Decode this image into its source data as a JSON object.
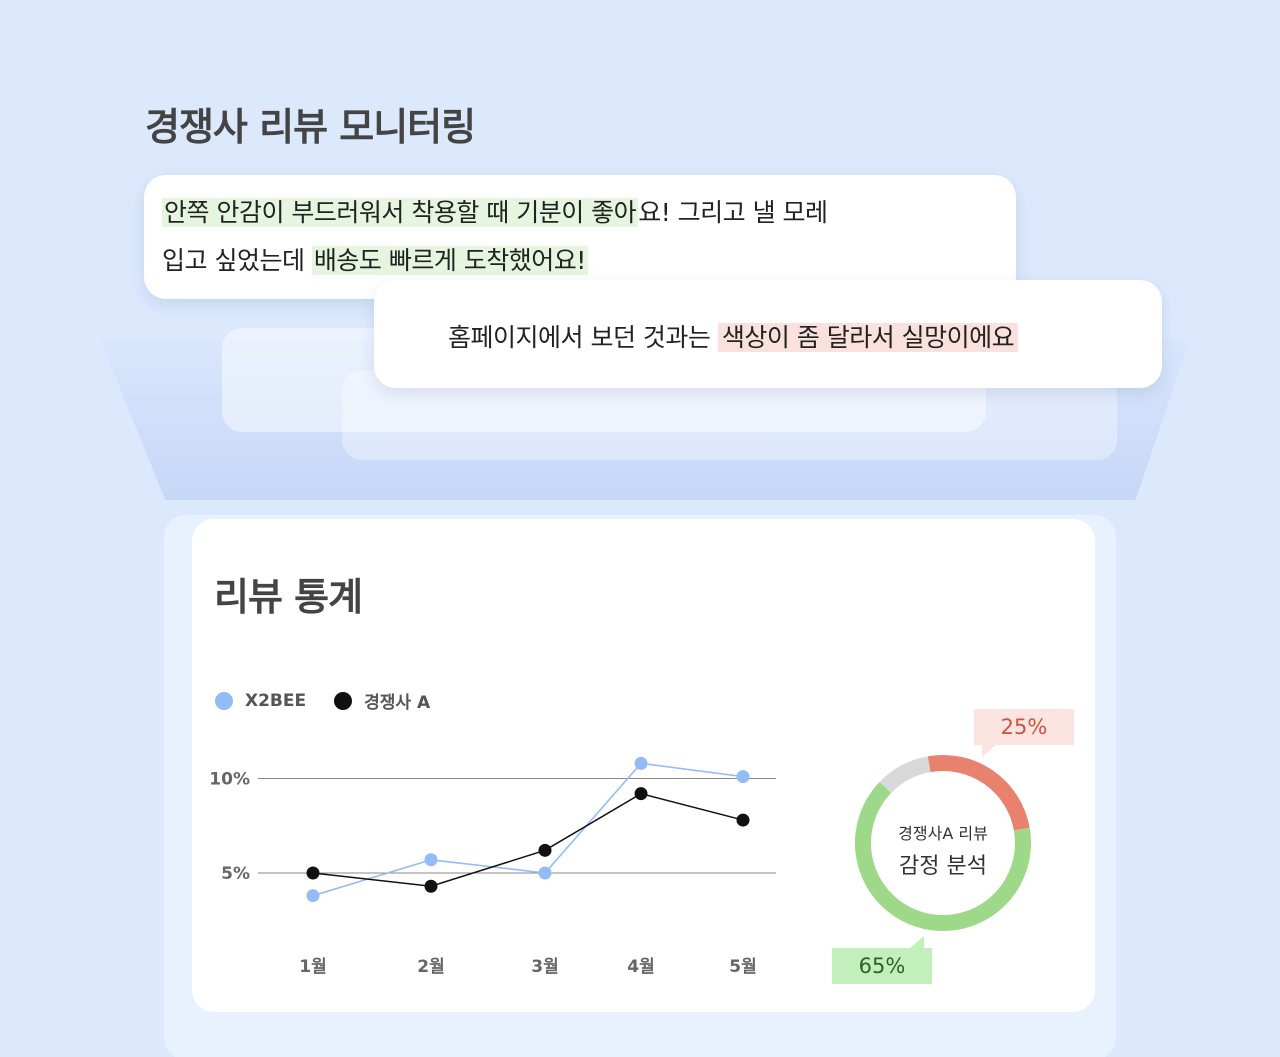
{
  "page": {
    "title": "경쟁사 리뷰 모니터링"
  },
  "reviews": [
    {
      "line1_highlight": "안쪽 안감이 부드러워서 착용할 때 기분이 좋아",
      "line1_rest": "요! 그리고 낼 모레",
      "line2_plain": "입고 싶었는데 ",
      "line2_highlight": "배송도 빠르게 도착했어요!",
      "sentiment": "positive"
    },
    {
      "plain": "홈페이지에서 보던 것과는 ",
      "highlight": "색상이 좀 달라서 실망이에요",
      "sentiment": "negative"
    }
  ],
  "stats": {
    "title": "리뷰 통계",
    "legend": [
      "X2BEE",
      "경쟁사 A"
    ]
  },
  "donut": {
    "label_small": "경쟁사A 리뷰",
    "label_large": "감정 분석",
    "negative_label": "25%",
    "positive_label": "65%"
  },
  "colors": {
    "x2bee": "#93bbf5",
    "competitor": "#111111",
    "positive": "#9ed98a",
    "negative": "#e8826f",
    "neutral": "#d9d9d9"
  },
  "chart_data": [
    {
      "type": "line",
      "categories": [
        "1월",
        "2월",
        "3월",
        "4월",
        "5월"
      ],
      "ytick_labels": [
        "5%",
        "10%"
      ],
      "ylim": [
        0,
        14
      ],
      "series": [
        {
          "name": "X2BEE",
          "values": [
            3.8,
            5.7,
            5.0,
            10.8,
            10.1
          ]
        },
        {
          "name": "경쟁사 A",
          "values": [
            5.0,
            4.3,
            6.2,
            9.2,
            7.8
          ]
        }
      ],
      "legend": "top-left",
      "grid": true
    },
    {
      "type": "pie",
      "categories": [
        "negative",
        "positive",
        "neutral"
      ],
      "values": [
        25,
        65,
        10
      ],
      "labels": [
        "25%",
        "65%"
      ]
    }
  ]
}
